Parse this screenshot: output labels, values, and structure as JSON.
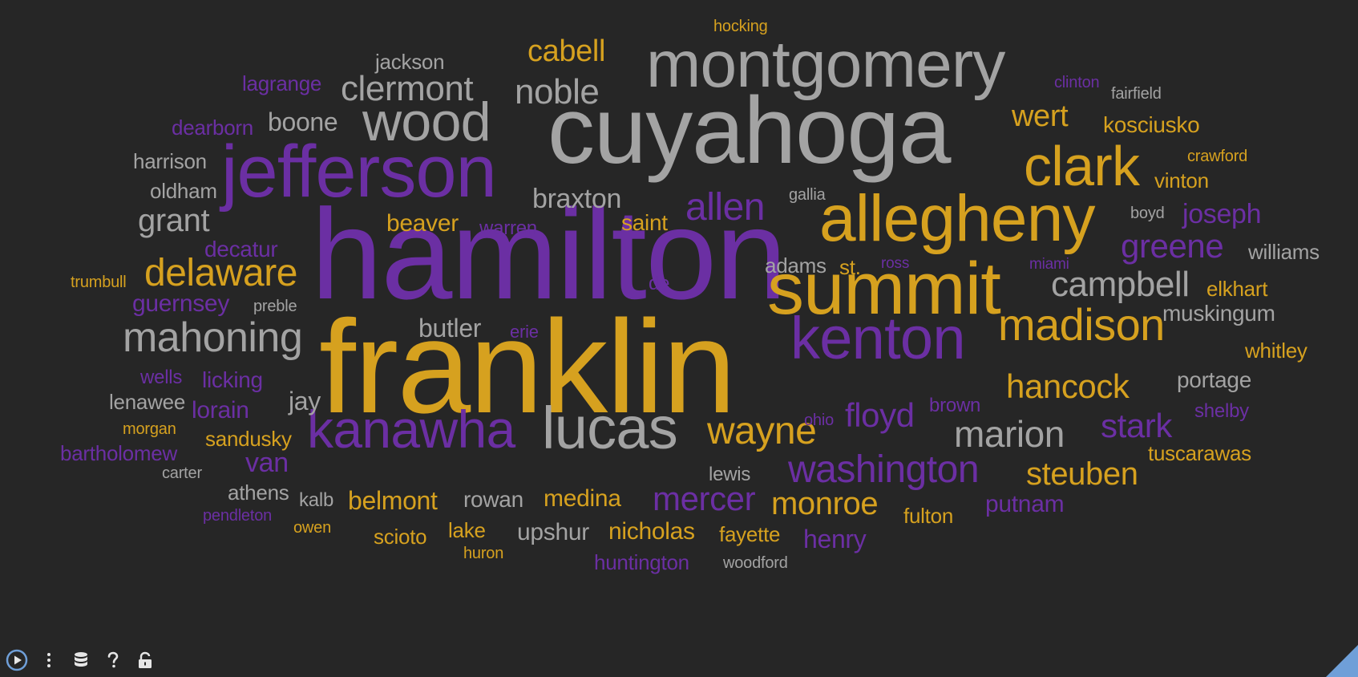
{
  "colors": {
    "background": "#262626",
    "gray": "#a3a3a3",
    "purple": "#6b2fa3",
    "gold": "#d6a11f",
    "toolbar_icon": "#e6e6e6",
    "play_accent": "#6f9fd8"
  },
  "toolbar": {
    "icons": [
      "play-icon",
      "more-vertical-icon",
      "database-icon",
      "help-icon",
      "unlock-icon"
    ]
  },
  "words": [
    {
      "id": "franklin",
      "text": "franklin",
      "color": "gold",
      "weight": 1.0
    },
    {
      "id": "hamilton",
      "text": "hamilton",
      "color": "purple",
      "weight": 0.98
    },
    {
      "id": "cuyahoga",
      "text": "cuyahoga",
      "color": "gray",
      "weight": 0.75
    },
    {
      "id": "jefferson",
      "text": "jefferson",
      "color": "purple",
      "weight": 0.62
    },
    {
      "id": "summit",
      "text": "summit",
      "color": "gold",
      "weight": 0.6
    },
    {
      "id": "allegheny",
      "text": "allegheny",
      "color": "gold",
      "weight": 0.55
    },
    {
      "id": "montgomery",
      "text": "montgomery",
      "color": "gray",
      "weight": 0.55
    },
    {
      "id": "kenton",
      "text": "kenton",
      "color": "purple",
      "weight": 0.46
    },
    {
      "id": "lucas",
      "text": "lucas",
      "color": "gray",
      "weight": 0.46
    },
    {
      "id": "clark",
      "text": "clark",
      "color": "gold",
      "weight": 0.45
    },
    {
      "id": "wood",
      "text": "wood",
      "color": "gray",
      "weight": 0.44
    },
    {
      "id": "kanawha",
      "text": "kanawha",
      "color": "purple",
      "weight": 0.43
    },
    {
      "id": "madison",
      "text": "madison",
      "color": "gold",
      "weight": 0.38
    },
    {
      "id": "mahoning",
      "text": "mahoning",
      "color": "gray",
      "weight": 0.34
    },
    {
      "id": "delaware",
      "text": "delaware",
      "color": "gold",
      "weight": 0.32
    },
    {
      "id": "allen",
      "text": "allen",
      "color": "purple",
      "weight": 0.31
    },
    {
      "id": "washington",
      "text": "washington",
      "color": "purple",
      "weight": 0.31
    },
    {
      "id": "wayne",
      "text": "wayne",
      "color": "gold",
      "weight": 0.31
    },
    {
      "id": "marion",
      "text": "marion",
      "color": "gray",
      "weight": 0.3
    },
    {
      "id": "noble",
      "text": "noble",
      "color": "gray",
      "weight": 0.29
    },
    {
      "id": "clermont",
      "text": "clermont",
      "color": "gray",
      "weight": 0.29
    },
    {
      "id": "campbell",
      "text": "campbell",
      "color": "gray",
      "weight": 0.29
    },
    {
      "id": "hancock",
      "text": "hancock",
      "color": "gold",
      "weight": 0.28
    },
    {
      "id": "grant",
      "text": "grant",
      "color": "gray",
      "weight": 0.28
    },
    {
      "id": "monroe",
      "text": "monroe",
      "color": "gold",
      "weight": 0.28
    },
    {
      "id": "steuben",
      "text": "steuben",
      "color": "gold",
      "weight": 0.27
    },
    {
      "id": "greene",
      "text": "greene",
      "color": "purple",
      "weight": 0.27
    },
    {
      "id": "floyd",
      "text": "floyd",
      "color": "purple",
      "weight": 0.27
    },
    {
      "id": "mercer",
      "text": "mercer",
      "color": "purple",
      "weight": 0.27
    },
    {
      "id": "stark",
      "text": "stark",
      "color": "purple",
      "weight": 0.26
    },
    {
      "id": "wert",
      "text": "wert",
      "color": "gold",
      "weight": 0.25
    },
    {
      "id": "cabell",
      "text": "cabell",
      "color": "gold",
      "weight": 0.25
    },
    {
      "id": "braxton",
      "text": "braxton",
      "color": "gray",
      "weight": 0.24
    },
    {
      "id": "joseph",
      "text": "joseph",
      "color": "purple",
      "weight": 0.24
    },
    {
      "id": "boone",
      "text": "boone",
      "color": "gray",
      "weight": 0.23
    },
    {
      "id": "butler",
      "text": "butler",
      "color": "gray",
      "weight": 0.23
    },
    {
      "id": "belmont",
      "text": "belmont",
      "color": "gold",
      "weight": 0.23
    },
    {
      "id": "medina",
      "text": "medina",
      "color": "gold",
      "weight": 0.22
    },
    {
      "id": "jay",
      "text": "jay",
      "color": "gray",
      "weight": 0.22
    },
    {
      "id": "van",
      "text": "van",
      "color": "purple",
      "weight": 0.22
    },
    {
      "id": "beaver",
      "text": "beaver",
      "color": "gold",
      "weight": 0.22
    },
    {
      "id": "henry",
      "text": "henry",
      "color": "purple",
      "weight": 0.21
    },
    {
      "id": "putnam",
      "text": "putnam",
      "color": "purple",
      "weight": 0.21
    },
    {
      "id": "nicholas",
      "text": "nicholas",
      "color": "gold",
      "weight": 0.21
    },
    {
      "id": "kosciusko",
      "text": "kosciusko",
      "color": "gold",
      "weight": 0.2
    },
    {
      "id": "portage",
      "text": "portage",
      "color": "gray",
      "weight": 0.2
    },
    {
      "id": "muskingum",
      "text": "muskingum",
      "color": "gray",
      "weight": 0.2
    },
    {
      "id": "upshur",
      "text": "upshur",
      "color": "gray",
      "weight": 0.2
    },
    {
      "id": "rowan",
      "text": "rowan",
      "color": "gray",
      "weight": 0.2
    },
    {
      "id": "guernsey",
      "text": "guernsey",
      "color": "purple",
      "weight": 0.2
    },
    {
      "id": "licking",
      "text": "licking",
      "color": "purple",
      "weight": 0.2
    },
    {
      "id": "lorain",
      "text": "lorain",
      "color": "purple",
      "weight": 0.2
    },
    {
      "id": "saint",
      "text": "saint",
      "color": "gold",
      "weight": 0.19
    },
    {
      "id": "adams",
      "text": "adams",
      "color": "gray",
      "weight": 0.19
    },
    {
      "id": "jackson",
      "text": "jackson",
      "color": "gray",
      "weight": 0.18
    },
    {
      "id": "harrison",
      "text": "harrison",
      "color": "gray",
      "weight": 0.18
    },
    {
      "id": "oldham",
      "text": "oldham",
      "color": "gray",
      "weight": 0.18
    },
    {
      "id": "lenawee",
      "text": "lenawee",
      "color": "gray",
      "weight": 0.18
    },
    {
      "id": "athens",
      "text": "athens",
      "color": "gray",
      "weight": 0.18
    },
    {
      "id": "lagrange",
      "text": "lagrange",
      "color": "purple",
      "weight": 0.18
    },
    {
      "id": "dearborn",
      "text": "dearborn",
      "color": "purple",
      "weight": 0.18
    },
    {
      "id": "decatur",
      "text": "decatur",
      "color": "purple",
      "weight": 0.18
    },
    {
      "id": "warren",
      "text": "warren",
      "color": "purple",
      "weight": 0.18
    },
    {
      "id": "bartholomew",
      "text": "bartholomew",
      "color": "purple",
      "weight": 0.18
    },
    {
      "id": "huntington",
      "text": "huntington",
      "color": "purple",
      "weight": 0.18
    },
    {
      "id": "vinton",
      "text": "vinton",
      "color": "gold",
      "weight": 0.18
    },
    {
      "id": "elkhart",
      "text": "elkhart",
      "color": "gold",
      "weight": 0.18
    },
    {
      "id": "whitley",
      "text": "whitley",
      "color": "gold",
      "weight": 0.18
    },
    {
      "id": "tuscarawas",
      "text": "tuscarawas",
      "color": "gold",
      "weight": 0.18
    },
    {
      "id": "sandusky",
      "text": "sandusky",
      "color": "gold",
      "weight": 0.18
    },
    {
      "id": "scioto",
      "text": "scioto",
      "color": "gold",
      "weight": 0.18
    },
    {
      "id": "lake",
      "text": "lake",
      "color": "gold",
      "weight": 0.18
    },
    {
      "id": "fayette",
      "text": "fayette",
      "color": "gold",
      "weight": 0.18
    },
    {
      "id": "fulton",
      "text": "fulton",
      "color": "gold",
      "weight": 0.18
    },
    {
      "id": "st",
      "text": "st.",
      "color": "gold",
      "weight": 0.18
    },
    {
      "id": "williams",
      "text": "williams",
      "color": "gray",
      "weight": 0.18
    },
    {
      "id": "brown",
      "text": "brown",
      "color": "purple",
      "weight": 0.17
    },
    {
      "id": "shelby",
      "text": "shelby",
      "color": "purple",
      "weight": 0.17
    },
    {
      "id": "wells",
      "text": "wells",
      "color": "purple",
      "weight": 0.17
    },
    {
      "id": "kalb",
      "text": "kalb",
      "color": "gray",
      "weight": 0.17
    },
    {
      "id": "lewis",
      "text": "lewis",
      "color": "gray",
      "weight": 0.17
    },
    {
      "id": "erie",
      "text": "erie",
      "color": "purple",
      "weight": 0.16
    },
    {
      "id": "de",
      "text": "de",
      "color": "purple",
      "weight": 0.16
    },
    {
      "id": "crawford",
      "text": "crawford",
      "color": "gold",
      "weight": 0.15
    },
    {
      "id": "fairfield",
      "text": "fairfield",
      "color": "gray",
      "weight": 0.15
    },
    {
      "id": "clinton",
      "text": "clinton",
      "color": "purple",
      "weight": 0.15
    },
    {
      "id": "hocking",
      "text": "hocking",
      "color": "gold",
      "weight": 0.15
    },
    {
      "id": "gallia",
      "text": "gallia",
      "color": "gray",
      "weight": 0.15
    },
    {
      "id": "boyd",
      "text": "boyd",
      "color": "gray",
      "weight": 0.15
    },
    {
      "id": "preble",
      "text": "preble",
      "color": "gray",
      "weight": 0.15
    },
    {
      "id": "carter",
      "text": "carter",
      "color": "gray",
      "weight": 0.15
    },
    {
      "id": "woodford",
      "text": "woodford",
      "color": "gray",
      "weight": 0.15
    },
    {
      "id": "trumbull",
      "text": "trumbull",
      "color": "gold",
      "weight": 0.15
    },
    {
      "id": "morgan",
      "text": "morgan",
      "color": "gold",
      "weight": 0.15
    },
    {
      "id": "owen",
      "text": "owen",
      "color": "gold",
      "weight": 0.15
    },
    {
      "id": "huron",
      "text": "huron",
      "color": "gold",
      "weight": 0.15
    },
    {
      "id": "pendleton",
      "text": "pendleton",
      "color": "purple",
      "weight": 0.15
    },
    {
      "id": "ohio",
      "text": "ohio",
      "color": "purple",
      "weight": 0.15
    },
    {
      "id": "miami",
      "text": "miami",
      "color": "purple",
      "weight": 0.14
    },
    {
      "id": "ross",
      "text": "ross",
      "color": "purple",
      "weight": 0.14
    }
  ]
}
